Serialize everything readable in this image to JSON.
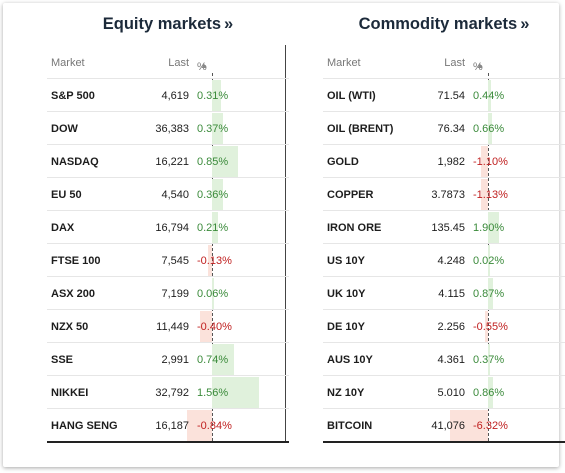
{
  "equity": {
    "title": "Equity markets",
    "chevron": "»",
    "headers": {
      "market": "Market",
      "last": "Last",
      "pct": "%"
    },
    "sort_icon": "▲",
    "rows": [
      {
        "market": "S&P 500",
        "last": "4,619",
        "pct": "0.31%",
        "value": 0.31
      },
      {
        "market": "DOW",
        "last": "36,383",
        "pct": "0.37%",
        "value": 0.37
      },
      {
        "market": "NASDAQ",
        "last": "16,221",
        "pct": "0.85%",
        "value": 0.85
      },
      {
        "market": "EU 50",
        "last": "4,540",
        "pct": "0.36%",
        "value": 0.36
      },
      {
        "market": "DAX",
        "last": "16,794",
        "pct": "0.21%",
        "value": 0.21
      },
      {
        "market": "FTSE 100",
        "last": "7,545",
        "pct": "-0.13%",
        "value": -0.13
      },
      {
        "market": "ASX 200",
        "last": "7,199",
        "pct": "0.06%",
        "value": 0.06
      },
      {
        "market": "NZX 50",
        "last": "11,449",
        "pct": "-0.40%",
        "value": -0.4
      },
      {
        "market": "SSE",
        "last": "2,991",
        "pct": "0.74%",
        "value": 0.74
      },
      {
        "market": "NIKKEI",
        "last": "32,792",
        "pct": "1.56%",
        "value": 1.56
      },
      {
        "market": "HANG SENG",
        "last": "16,187",
        "pct": "-0.84%",
        "value": -0.84
      }
    ]
  },
  "commodity": {
    "title": "Commodity markets",
    "chevron": "»",
    "headers": {
      "market": "Market",
      "last": "Last",
      "pct": "%"
    },
    "sort_icon": "▲",
    "rows": [
      {
        "market": "OIL (WTI)",
        "last": "71.54",
        "pct": "0.44%",
        "value": 0.44
      },
      {
        "market": "OIL (BRENT)",
        "last": "76.34",
        "pct": "0.66%",
        "value": 0.66
      },
      {
        "market": "GOLD",
        "last": "1,982",
        "pct": "-1.10%",
        "value": -1.1
      },
      {
        "market": "COPPER",
        "last": "3.7873",
        "pct": "-1.13%",
        "value": -1.13
      },
      {
        "market": "IRON ORE",
        "last": "135.45",
        "pct": "1.90%",
        "value": 1.9
      },
      {
        "market": "US 10Y",
        "last": "4.248",
        "pct": "0.02%",
        "value": 0.02
      },
      {
        "market": "UK 10Y",
        "last": "4.115",
        "pct": "0.87%",
        "value": 0.87
      },
      {
        "market": "DE 10Y",
        "last": "2.256",
        "pct": "-0.55%",
        "value": -0.55
      },
      {
        "market": "AUS 10Y",
        "last": "4.361",
        "pct": "0.37%",
        "value": 0.37
      },
      {
        "market": "NZ 10Y",
        "last": "5.010",
        "pct": "0.86%",
        "value": 0.86
      },
      {
        "market": "BITCOIN",
        "last": "41,076",
        "pct": "-6.32%",
        "value": -6.32
      }
    ]
  },
  "colors": {
    "positive": "#3a8a3a",
    "negative": "#c02020",
    "positive_bar": "#e0f1dc",
    "negative_bar": "#fbe2db"
  }
}
